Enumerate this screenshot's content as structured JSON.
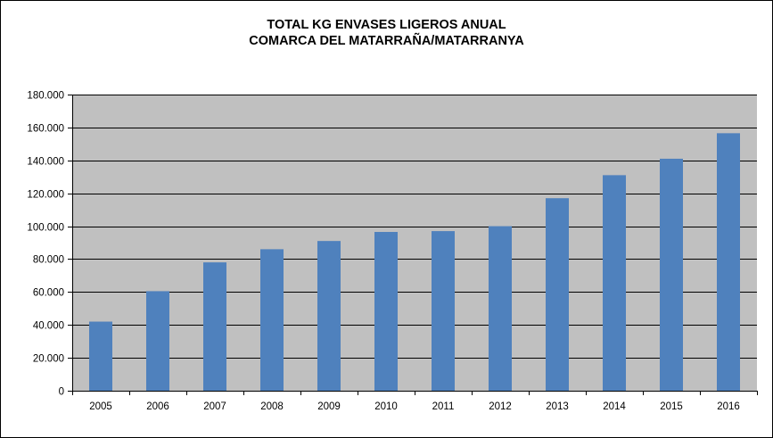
{
  "chart_data": {
    "type": "bar",
    "title": [
      "TOTAL KG ENVASES LIGEROS ANUAL",
      "COMARCA DEL MATARRAÑA/MATARRANYA"
    ],
    "categories": [
      "2005",
      "2006",
      "2007",
      "2008",
      "2009",
      "2010",
      "2011",
      "2012",
      "2013",
      "2014",
      "2015",
      "2016"
    ],
    "values": [
      42000,
      60500,
      78000,
      86000,
      91000,
      96500,
      97000,
      100000,
      117000,
      131000,
      141000,
      156500
    ],
    "ylim": [
      0,
      180000
    ],
    "yticks": [
      0,
      20000,
      40000,
      60000,
      80000,
      100000,
      120000,
      140000,
      160000,
      180000
    ],
    "ytick_labels": [
      "0",
      "20.000",
      "40.000",
      "60.000",
      "80.000",
      "100.000",
      "120.000",
      "140.000",
      "160.000",
      "180.000"
    ],
    "grid": true,
    "legend": "none",
    "colors": {
      "bar": "#4f81bd",
      "plot_background": "#c0c0c0",
      "gridline": "#000000"
    }
  }
}
